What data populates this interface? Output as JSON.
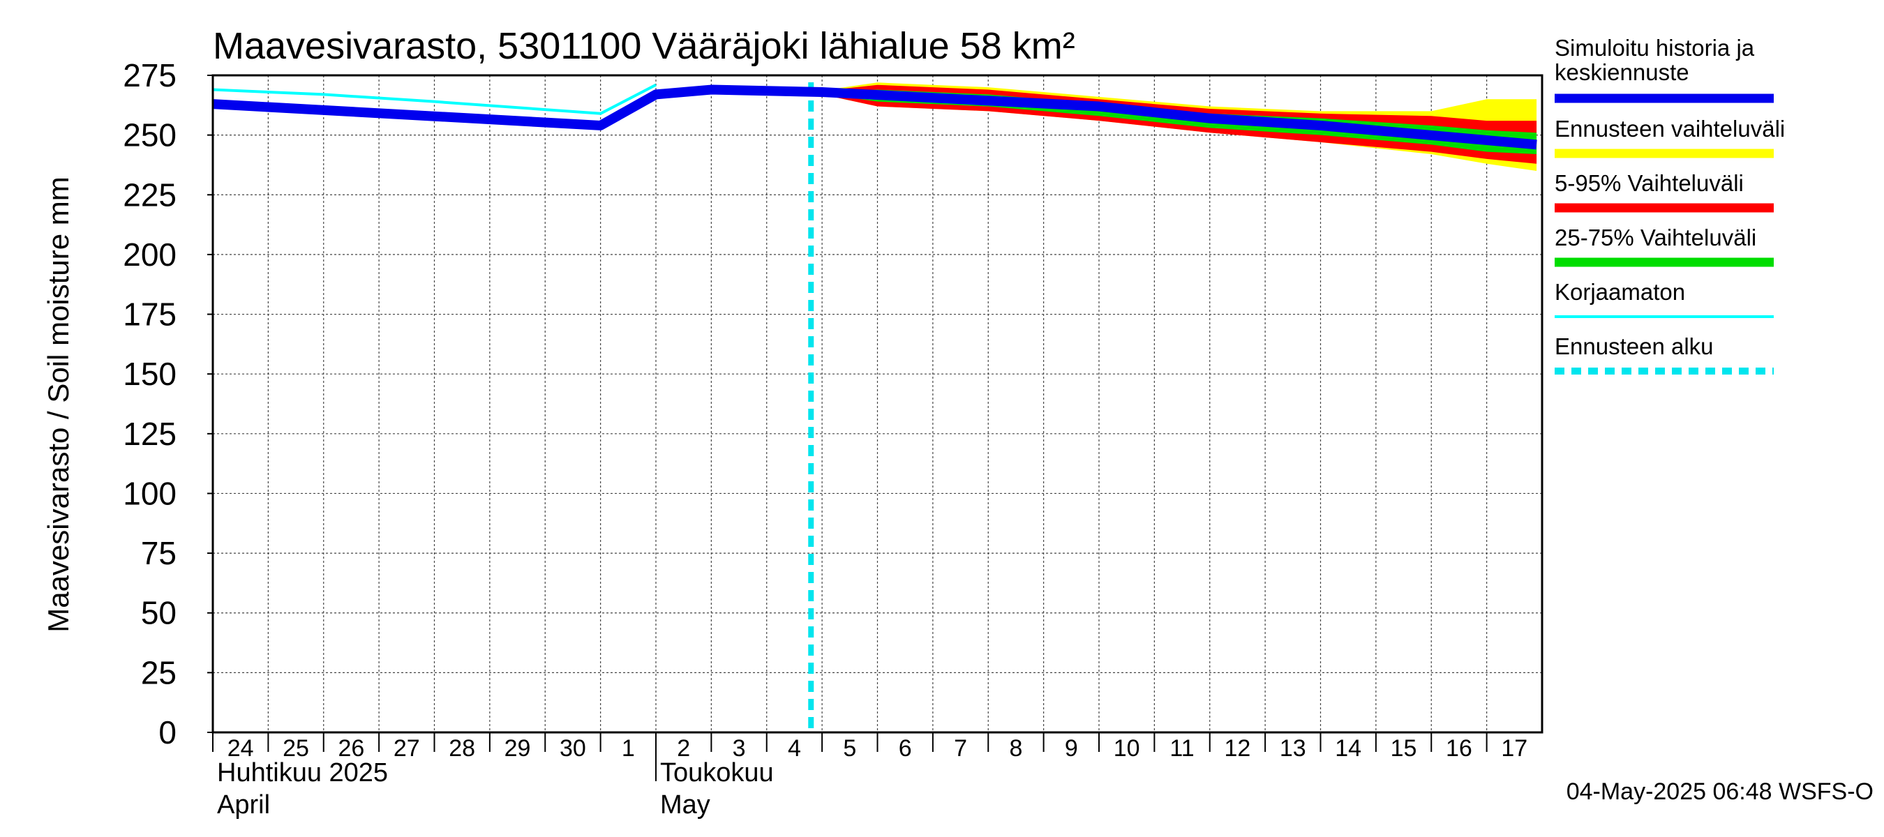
{
  "chart_data": {
    "type": "line",
    "title": "Maavesivarasto, 5301100 Vääräjoki lähialue 58 km²",
    "ylabel": "Maavesivarasto / Soil moisture   mm",
    "ylim": [
      0,
      275
    ],
    "yticks": [
      "0",
      "25",
      "50",
      "75",
      "100",
      "125",
      "150",
      "175",
      "200",
      "225",
      "250",
      "275"
    ],
    "x_start_day": 24,
    "x_end_day": 48,
    "day_labels": [
      "24",
      "25",
      "26",
      "27",
      "28",
      "29",
      "30",
      "1",
      "2",
      "3",
      "4",
      "5",
      "6",
      "7",
      "8",
      "9",
      "10",
      "11",
      "12",
      "13",
      "14",
      "15",
      "16",
      "17"
    ],
    "months": [
      {
        "line1": "Huhtikuu  2025",
        "line2": "April",
        "at_day": 24
      },
      {
        "line1": "Toukokuu",
        "line2": "May",
        "at_day": 32
      }
    ],
    "forecast_start_day": 34.8,
    "series": [
      {
        "name": "Simuloitu historia ja keskiennuste",
        "color": "#0000ee",
        "x": [
          24,
          31,
          32,
          33,
          35,
          40,
          42,
          44,
          47.9
        ],
        "y": [
          263,
          254,
          267,
          269,
          268,
          262,
          257,
          254,
          246
        ]
      },
      {
        "name": "Korjaamaton",
        "color": "#00ffff",
        "x": [
          24,
          26,
          28,
          31,
          32
        ],
        "y": [
          269,
          267,
          264,
          259,
          271
        ]
      },
      {
        "name": "Ennusteen vaihteluväli",
        "color": "#ffff00",
        "upper_x": [
          34.8,
          36,
          38,
          40,
          42,
          44,
          46,
          47,
          47.9
        ],
        "upper_y": [
          268,
          272,
          270,
          266,
          262,
          260,
          260,
          265,
          265
        ],
        "lower_x": [
          34.8,
          36,
          38,
          40,
          42,
          44,
          46,
          47,
          47.9
        ],
        "lower_y": [
          268,
          262,
          260,
          256,
          251,
          247,
          242,
          238,
          235
        ]
      },
      {
        "name": "5-95% Vaihteluväli",
        "color": "#ff0000",
        "upper_x": [
          34.8,
          36,
          38,
          40,
          42,
          44,
          46,
          47,
          47.9
        ],
        "upper_y": [
          268,
          271,
          269,
          265,
          261,
          259,
          258,
          256,
          256
        ],
        "lower_x": [
          34.8,
          36,
          38,
          40,
          42,
          44,
          46,
          47,
          47.9
        ],
        "lower_y": [
          268,
          262,
          260,
          256,
          251,
          247,
          243,
          240,
          238
        ]
      },
      {
        "name": "25-75% Vaihteluväli",
        "color": "#00dd00",
        "upper_x": [
          34.8,
          36,
          38,
          40,
          42,
          44,
          46,
          47,
          47.9
        ],
        "upper_y": [
          268,
          269,
          267,
          263,
          259,
          257,
          254,
          252,
          251
        ],
        "lower_x": [
          34.8,
          36,
          38,
          40,
          42,
          44,
          46,
          47,
          47.9
        ],
        "lower_y": [
          268,
          264,
          262,
          258,
          253,
          250,
          246,
          243,
          242
        ]
      },
      {
        "name": "Ennusteen alku",
        "color": "#00e5ee"
      }
    ],
    "legend": [
      {
        "label_lines": [
          "Simuloitu historia ja",
          "keskiennuste"
        ],
        "color": "#0000ee",
        "style": "solid-thick"
      },
      {
        "label_lines": [
          "Ennusteen vaihteluväli"
        ],
        "color": "#ffff00",
        "style": "solid-thick"
      },
      {
        "label_lines": [
          "5-95% Vaihteluväli"
        ],
        "color": "#ff0000",
        "style": "solid-thick"
      },
      {
        "label_lines": [
          "25-75% Vaihteluväli"
        ],
        "color": "#00dd00",
        "style": "solid-thick"
      },
      {
        "label_lines": [
          "Korjaamaton"
        ],
        "color": "#00ffff",
        "style": "solid-thin"
      },
      {
        "label_lines": [
          "Ennusteen alku"
        ],
        "color": "#00e5ee",
        "style": "dashed"
      }
    ],
    "footer": "04-May-2025 06:48 WSFS-O"
  }
}
